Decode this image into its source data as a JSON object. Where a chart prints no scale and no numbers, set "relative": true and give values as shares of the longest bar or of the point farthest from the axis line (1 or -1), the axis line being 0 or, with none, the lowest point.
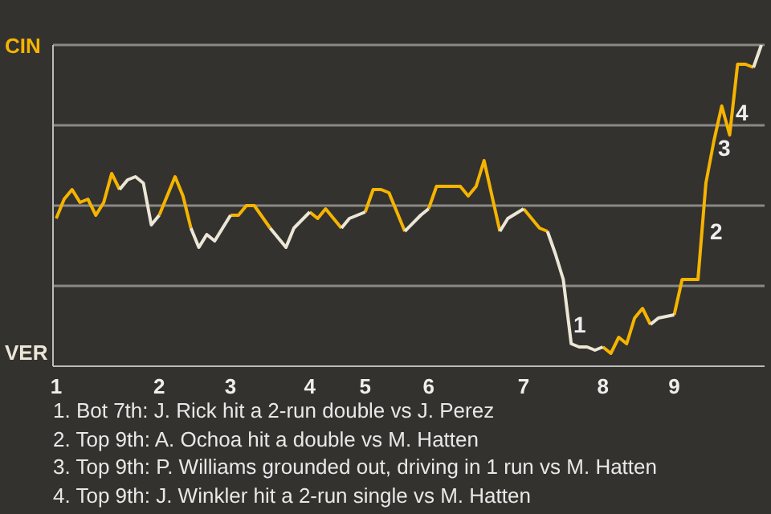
{
  "chart_data": {
    "type": "line",
    "relative": true,
    "categories": [
      "1",
      null,
      null,
      null,
      null,
      null,
      null,
      null,
      null,
      null,
      null,
      null,
      null,
      "2",
      null,
      null,
      null,
      null,
      null,
      null,
      null,
      null,
      "3",
      null,
      null,
      null,
      null,
      null,
      null,
      null,
      null,
      null,
      "4",
      null,
      null,
      null,
      null,
      null,
      null,
      "5",
      null,
      null,
      null,
      null,
      null,
      null,
      null,
      "6",
      null,
      null,
      null,
      null,
      null,
      null,
      null,
      null,
      null,
      null,
      null,
      "7",
      null,
      null,
      null,
      null,
      null,
      null,
      null,
      null,
      null,
      "8",
      null,
      null,
      null,
      null,
      null,
      null,
      null,
      null,
      "9",
      null,
      null,
      null,
      null,
      null,
      null,
      null,
      null,
      null,
      null,
      null
    ],
    "grid": "y",
    "marker": "none",
    "line_style": "solid",
    "series": [
      {
        "color": "#f5b400",
        "values": [
          0.46,
          0.52,
          0.55,
          0.51,
          0.52,
          0.47,
          0.51,
          0.6,
          0.55,
          null,
          null,
          null,
          null,
          0.47,
          null,
          0.59,
          0.53,
          0.43,
          null,
          null,
          null,
          null,
          0.47,
          0.47,
          0.5,
          0.5,
          null,
          0.43,
          null,
          null,
          null,
          null,
          0.48,
          0.46,
          0.49,
          null,
          0.43,
          null,
          null,
          0.48,
          0.55,
          0.55,
          0.54,
          null,
          0.42,
          null,
          null,
          0.49,
          0.56,
          null,
          null,
          0.56,
          0.53,
          0.56,
          0.64,
          null,
          0.42,
          null,
          null,
          0.49,
          null,
          0.43,
          0.42,
          null,
          null,
          null,
          null,
          null,
          null,
          0.06,
          0.04,
          0.09,
          0.07,
          0.15,
          0.18,
          0.13,
          null,
          null,
          0.16,
          0.27,
          null,
          0.27,
          0.57,
          0.7,
          0.81,
          0.72,
          0.94,
          0.94,
          0.93,
          null
        ]
      },
      {
        "color": "#ece6d6",
        "values": [
          null,
          null,
          null,
          null,
          null,
          null,
          null,
          null,
          0.55,
          0.58,
          0.59,
          0.57,
          0.44,
          0.47,
          null,
          null,
          null,
          0.43,
          0.37,
          0.41,
          0.39,
          null,
          0.47,
          null,
          null,
          null,
          null,
          0.43,
          0.4,
          0.37,
          0.43,
          null,
          0.48,
          null,
          null,
          null,
          0.43,
          0.46,
          null,
          0.48,
          null,
          null,
          null,
          null,
          0.42,
          null,
          0.47,
          0.49,
          null,
          null,
          null,
          null,
          null,
          null,
          null,
          null,
          0.42,
          0.46,
          null,
          0.49,
          null,
          null,
          0.42,
          0.35,
          0.27,
          0.07,
          0.06,
          0.06,
          0.05,
          0.06,
          null,
          null,
          null,
          null,
          null,
          0.13,
          0.15,
          null,
          0.16,
          null,
          null,
          null,
          null,
          null,
          null,
          null,
          null,
          null,
          0.93,
          1
        ]
      }
    ],
    "annotations": [
      "CIN",
      "VER",
      "1",
      "2",
      "3",
      "4",
      "1. Bot 7th: J. Rick hit a 2-run double vs J. Perez",
      "2. Top 9th: A. Ochoa hit a double vs M. Hatten",
      "3. Top 9th: P. Williams grounded out, driving in 1 run vs M. Hatten",
      "4. Top 9th: J. Winkler hit a 2-run single vs M. Hatten"
    ]
  }
}
